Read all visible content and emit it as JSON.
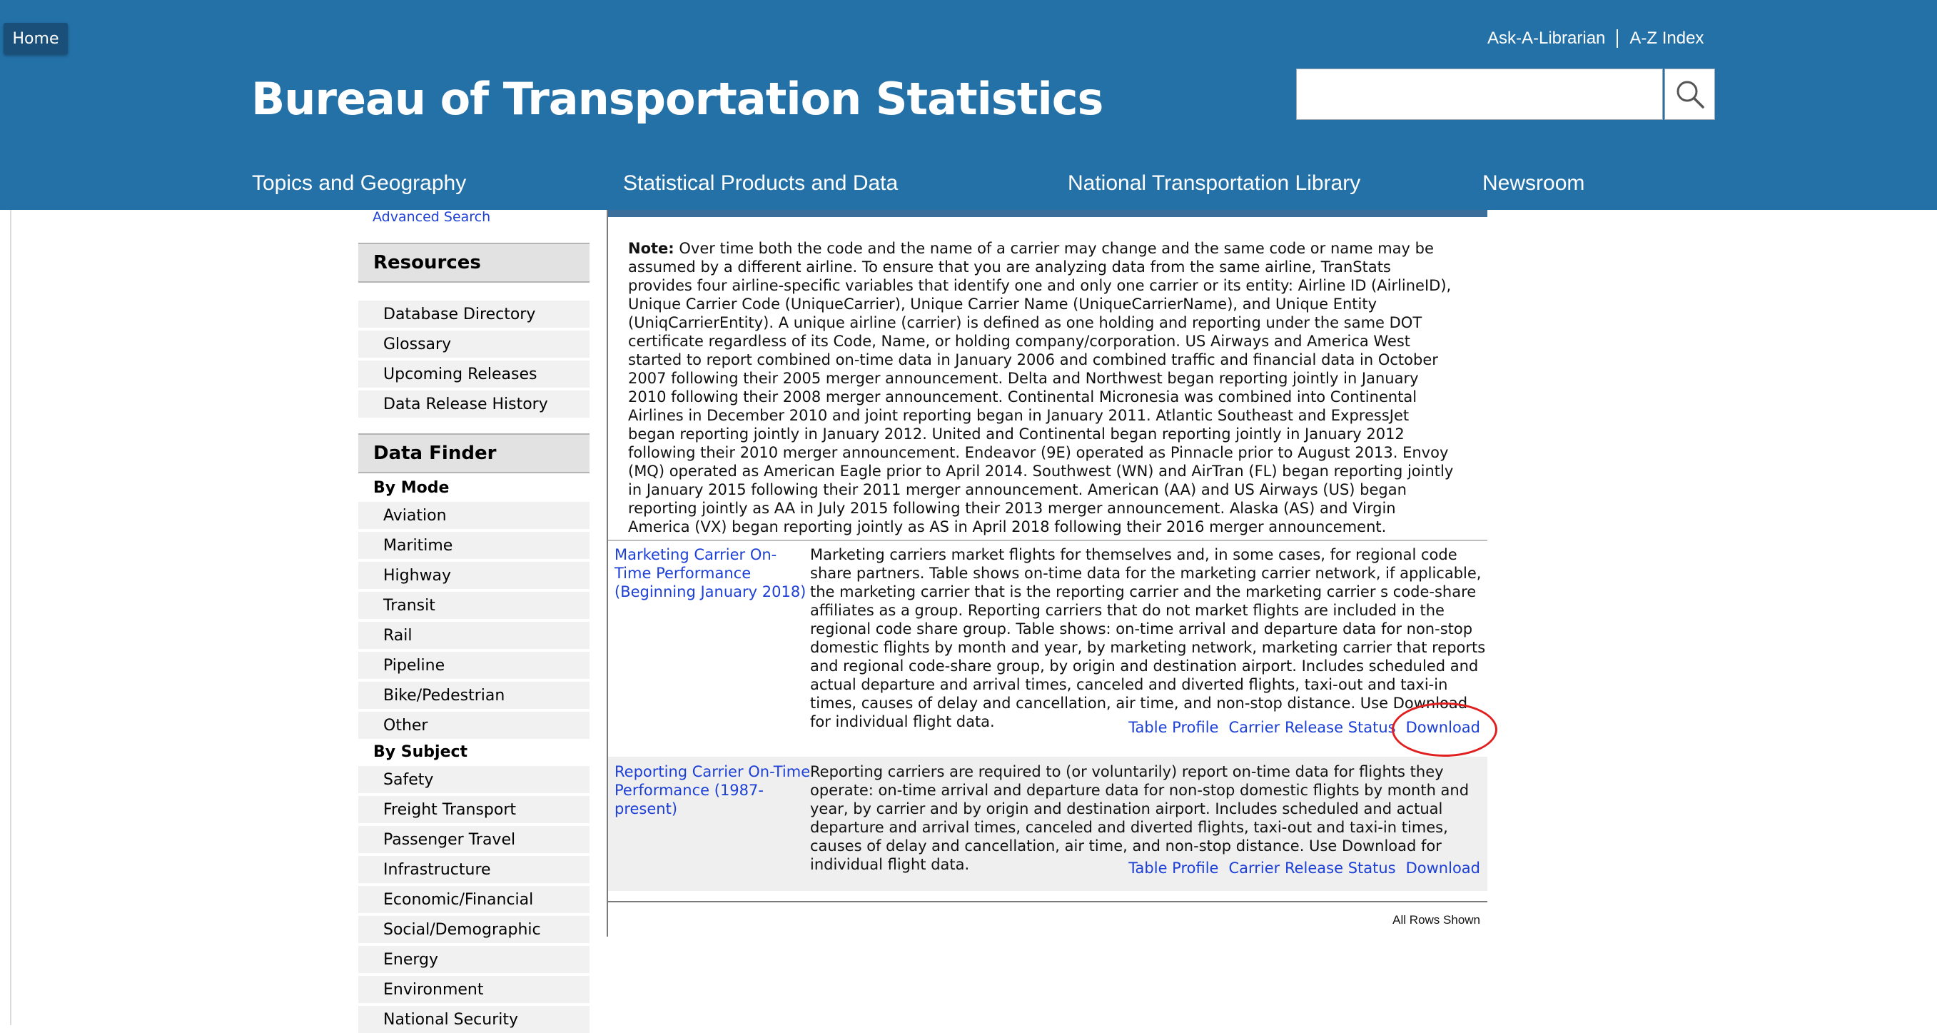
{
  "header": {
    "home_label": "Home",
    "site_title": "Bureau of Transportation Statistics",
    "utility_links": [
      "Ask-A-Librarian",
      "A-Z Index"
    ],
    "search": {
      "value": "",
      "placeholder": ""
    },
    "main_nav": [
      "Topics and Geography",
      "Statistical Products and Data",
      "National Transportation Library",
      "Newsroom"
    ],
    "brand_color": "#2471a8"
  },
  "sidebar": {
    "advanced_search": "Advanced Search",
    "resources_title": "Resources",
    "resources": [
      "Database Directory",
      "Glossary",
      "Upcoming Releases",
      "Data Release History"
    ],
    "data_finder_title": "Data Finder",
    "by_mode_label": "By Mode",
    "by_mode": [
      "Aviation",
      "Maritime",
      "Highway",
      "Transit",
      "Rail",
      "Pipeline",
      "Bike/Pedestrian",
      "Other"
    ],
    "by_subject_label": "By Subject",
    "by_subject": [
      "Safety",
      "Freight Transport",
      "Passenger Travel",
      "Infrastructure",
      "Economic/Financial",
      "Social/Demographic",
      "Energy",
      "Environment",
      "National Security"
    ]
  },
  "content": {
    "note_label": "Note:",
    "note_text": " Over time both the code and the name of a carrier may change and the same code or name may be assumed by a different airline. To ensure that you are analyzing data from the same airline, TranStats provides four airline-specific variables that identify one and only one carrier or its entity: Airline ID (AirlineID), Unique Carrier Code (UniqueCarrier), Unique Carrier Name (UniqueCarrierName), and Unique Entity (UniqCarrierEntity). A unique airline (carrier) is defined as one holding and reporting under the same DOT certificate regardless of its Code, Name, or holding company/corporation. US Airways and America West started to report combined on-time data in January 2006 and combined traffic and financial data in October 2007 following their 2005 merger announcement. Delta and Northwest began reporting jointly in January 2010 following their 2008 merger announcement. Continental Micronesia was combined into Continental Airlines in December 2010 and joint reporting began in January 2011. Atlantic Southeast and ExpressJet began reporting jointly in January 2012. United and Continental began reporting jointly in January 2012 following their 2010 merger announcement. Endeavor (9E) operated as Pinnacle prior to August 2013. Envoy (MQ) operated as American Eagle prior to April 2014. Southwest (WN) and AirTran (FL) began reporting jointly in January 2015 following their 2011 merger announcement. American (AA) and US Airways (US) began reporting jointly as AA in July 2015 following their 2013 merger announcement. Alaska (AS) and Virgin America (VX) began reporting jointly as AS in April 2018 following their 2016 merger announcement.",
    "rows": [
      {
        "title": "Marketing Carrier On-Time Performance (Beginning January 2018)",
        "description": "Marketing carriers market flights for themselves and, in some cases, for regional code share partners. Table shows on-time data for the marketing carrier network, if applicable, the marketing carrier that is the reporting carrier and the marketing carrier s code-share affiliates as a group. Reporting carriers that do not market flights are included in the regional code share group. Table shows: on-time arrival and departure data for non-stop domestic flights by month and year, by marketing network, marketing carrier that reports and regional code-share group, by origin and destination airport. Includes scheduled and actual departure and arrival times, canceled and diverted flights, taxi-out and taxi-in times, causes of delay and cancellation, air time, and non-stop distance. Use Download for individual flight data.",
        "actions": [
          "Table Profile",
          "Carrier Release Status",
          "Download"
        ]
      },
      {
        "title": "Reporting Carrier On-Time Performance (1987-present)",
        "description": "Reporting carriers are required to (or voluntarily) report on-time data for flights they operate: on-time arrival and departure data for non-stop domestic flights by month and year, by carrier and by origin and destination airport. Includes scheduled and actual departure and arrival times, canceled and diverted flights, taxi-out and taxi-in times, causes of delay and cancellation, air time, and non-stop distance. Use Download for individual flight data.",
        "actions": [
          "Table Profile",
          "Carrier Release Status",
          "Download"
        ]
      }
    ],
    "rows_shown": "All Rows Shown",
    "link_color": "#1c3fd6",
    "annotation_color": "#e02020"
  }
}
